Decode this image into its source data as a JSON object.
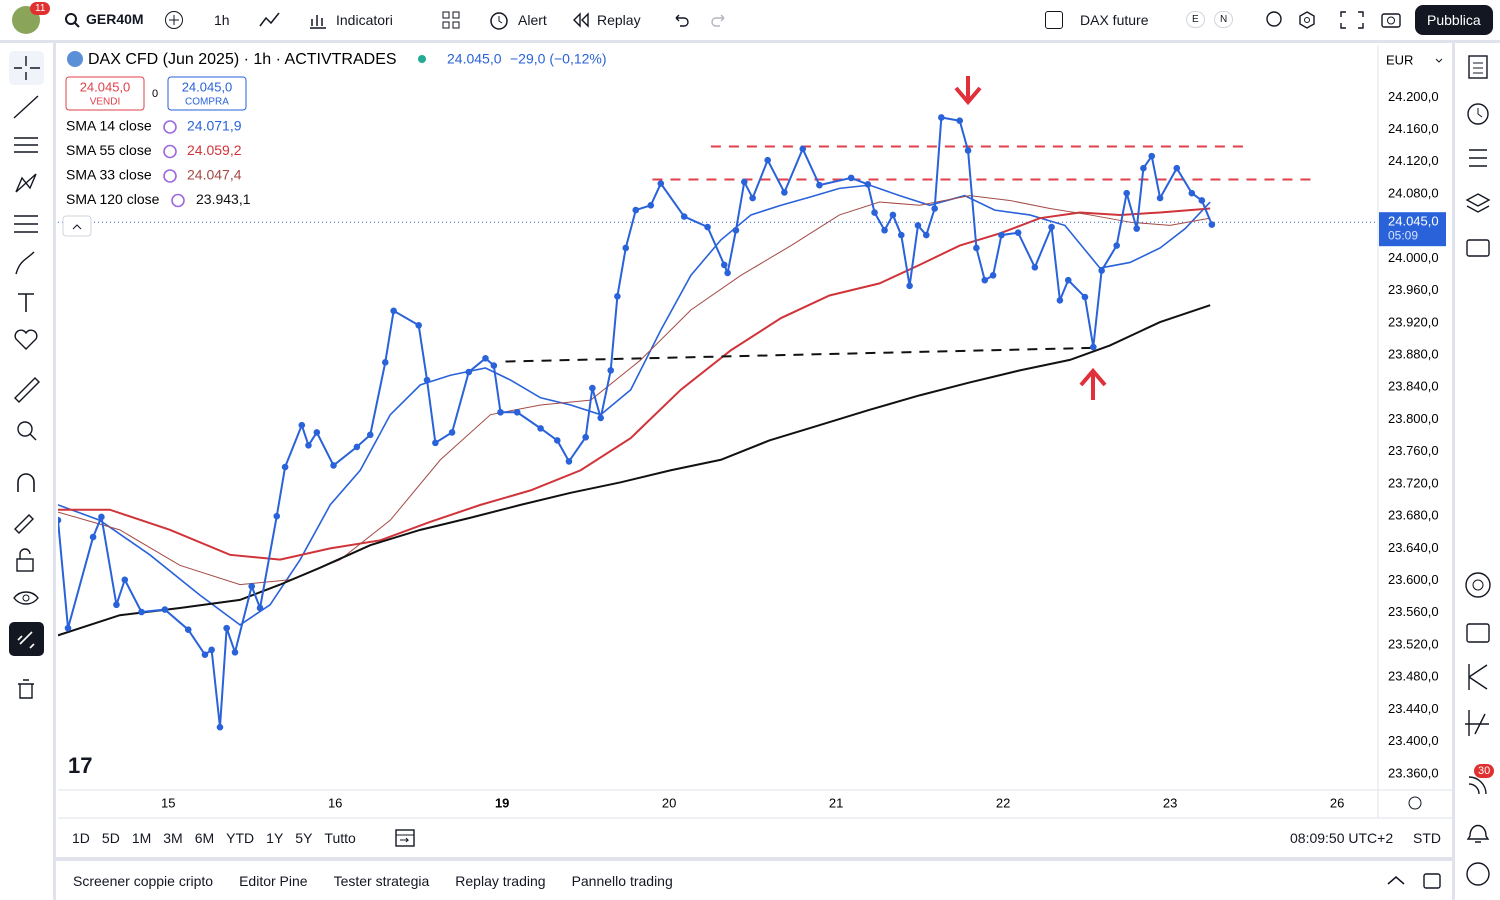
{
  "toolbar": {
    "badge": "11",
    "symbol": "GER40M",
    "interval": "1h",
    "indicators": "Indicatori",
    "alert": "Alert",
    "replay": "Replay",
    "compare": "DAX future",
    "e": "E",
    "n": "N",
    "publish": "Pubblica"
  },
  "chart_data": {
    "type": "line",
    "title": "DAX CFD (Jun 2025) · 1h · ACTIVTRADES",
    "quote": "24.045,0",
    "change": "−29,0 (−0,12%)",
    "currency": "EUR",
    "sell": {
      "price": "24.045,0",
      "label": "VENDI"
    },
    "spread": "0",
    "buy": {
      "price": "24.045,0",
      "label": "COMPRA"
    },
    "last_price": 24045,
    "last_price_label": "24.045,0",
    "countdown": "05:09",
    "logo": "17",
    "xlim": [
      -0.66,
      7.245
    ],
    "ylim": [
      23340,
      24265
    ],
    "grid": false,
    "xticks": [
      {
        "value": 0,
        "label": "15"
      },
      {
        "value": 1,
        "label": "16"
      },
      {
        "value": 2,
        "label": "19"
      },
      {
        "value": 3,
        "label": "20"
      },
      {
        "value": 4,
        "label": "21"
      },
      {
        "value": 5,
        "label": "22"
      },
      {
        "value": 6,
        "label": "23"
      },
      {
        "value": 7,
        "label": "26"
      }
    ],
    "yticks": [
      {
        "value": 23360,
        "label": "23.360,0"
      },
      {
        "value": 23400,
        "label": "23.400,0"
      },
      {
        "value": 23440,
        "label": "23.440,0"
      },
      {
        "value": 23480,
        "label": "23.480,0"
      },
      {
        "value": 23520,
        "label": "23.520,0"
      },
      {
        "value": 23560,
        "label": "23.560,0"
      },
      {
        "value": 23600,
        "label": "23.600,0"
      },
      {
        "value": 23640,
        "label": "23.640,0"
      },
      {
        "value": 23680,
        "label": "23.680,0"
      },
      {
        "value": 23720,
        "label": "23.720,0"
      },
      {
        "value": 23760,
        "label": "23.760,0"
      },
      {
        "value": 23800,
        "label": "23.800,0"
      },
      {
        "value": 23840,
        "label": "23.840,0"
      },
      {
        "value": 23880,
        "label": "23.880,0"
      },
      {
        "value": 23920,
        "label": "23.920,0"
      },
      {
        "value": 23960,
        "label": "23.960,0"
      },
      {
        "value": 24000,
        "label": "24.000,0"
      },
      {
        "value": 24040,
        "label": "24.040,0"
      },
      {
        "value": 24080,
        "label": "24.080,0"
      },
      {
        "value": 24120,
        "label": "24.120,0"
      },
      {
        "value": 24160,
        "label": "24.160,0"
      },
      {
        "value": 24200,
        "label": "24.200,0"
      }
    ],
    "price": {
      "color": "#2962d9",
      "markers": true,
      "x": [
        -0.66,
        -0.6,
        -0.45,
        -0.4,
        -0.31,
        -0.26,
        -0.16,
        -0.02,
        0.12,
        0.22,
        0.26,
        0.31,
        0.35,
        0.4,
        0.5,
        0.55,
        0.65,
        0.7,
        0.8,
        0.84,
        0.89,
        0.99,
        1.13,
        1.21,
        1.3,
        1.35,
        1.5,
        1.55,
        1.6,
        1.7,
        1.8,
        1.9,
        1.95,
        1.99,
        2.09,
        2.23,
        2.33,
        2.4,
        2.5,
        2.54,
        2.59,
        2.65,
        2.69,
        2.74,
        2.8,
        2.89,
        2.95,
        3.09,
        3.23,
        3.33,
        3.35,
        3.4,
        3.45,
        3.5,
        3.59,
        3.69,
        3.8,
        3.9,
        4.09,
        4.19,
        4.23,
        4.29,
        4.34,
        4.39,
        4.44,
        4.49,
        4.54,
        4.59,
        4.63,
        4.74,
        4.79,
        4.84,
        4.89,
        4.94,
        4.99,
        5.09,
        5.19,
        5.29,
        5.34,
        5.39,
        5.49,
        5.54,
        5.59,
        5.68,
        5.74,
        5.8,
        5.84,
        5.89,
        5.94,
        6.04,
        6.13,
        6.19,
        6.25
      ],
      "values": [
        23675,
        23541,
        23654,
        23679,
        23570,
        23601,
        23561,
        23564,
        23539,
        23508,
        23514,
        23418,
        23541,
        23511,
        23593,
        23566,
        23680,
        23741,
        23793,
        23768,
        23784,
        23743,
        23766,
        23781,
        23871,
        23935,
        23917,
        23849,
        23771,
        23784,
        23859,
        23876,
        23867,
        23809,
        23809,
        23789,
        23774,
        23748,
        23778,
        23839,
        23802,
        23861,
        23953,
        24013,
        24060,
        24066,
        24093,
        24052,
        24039,
        23992,
        23982,
        24035,
        24095,
        24075,
        24122,
        24082,
        24136,
        24091,
        24100,
        24092,
        24057,
        24035,
        24054,
        24029,
        23966,
        24041,
        24029,
        24062,
        24175,
        24171,
        24134,
        24013,
        23973,
        23979,
        24029,
        24032,
        23989,
        24039,
        23948,
        23973,
        23952,
        23890,
        23985,
        24016,
        24081,
        24037,
        24112,
        24127,
        24075,
        24112,
        24081,
        24072,
        24042
      ]
    },
    "series": [
      {
        "name": "SMA 14 close",
        "legend_value": "24.071,9",
        "color": "#2962d9",
        "width": 1.6,
        "x": [
          -0.66,
          -0.41,
          -0.11,
          0.19,
          0.43,
          0.61,
          0.79,
          0.97,
          1.15,
          1.33,
          1.51,
          1.69,
          1.9,
          2.05,
          2.23,
          2.41,
          2.59,
          2.77,
          2.95,
          3.13,
          3.31,
          3.49,
          3.67,
          3.84,
          4.02,
          4.2,
          4.38,
          4.56,
          4.77,
          4.95,
          5.16,
          5.37,
          5.58,
          5.76,
          5.94,
          6.09,
          6.24
        ],
        "values": [
          23694,
          23675,
          23632,
          23582,
          23545,
          23570,
          23626,
          23694,
          23737,
          23806,
          23843,
          23855,
          23864,
          23849,
          23827,
          23818,
          23806,
          23837,
          23911,
          23979,
          24023,
          24054,
          24066,
          24076,
          24087,
          24091,
          24078,
          24066,
          24078,
          24060,
          24054,
          24041,
          23988,
          23995,
          24013,
          24037,
          24070
        ]
      },
      {
        "name": "SMA 55 close",
        "legend_value": "24.059,2",
        "color": "#d0343a",
        "width": 2,
        "x": [
          -0.66,
          -0.35,
          0.01,
          0.37,
          0.67,
          0.97,
          1.27,
          1.57,
          1.87,
          2.17,
          2.47,
          2.77,
          3.07,
          3.37,
          3.67,
          3.96,
          4.26,
          4.5,
          4.74,
          4.98,
          5.22,
          5.46,
          5.7,
          5.94,
          6.24
        ],
        "values": [
          23688,
          23688,
          23663,
          23632,
          23626,
          23640,
          23650,
          23673,
          23694,
          23712,
          23737,
          23777,
          23837,
          23886,
          23926,
          23954,
          23969,
          23992,
          24016,
          24031,
          24050,
          24057,
          24054,
          24057,
          24062
        ]
      },
      {
        "name": "SMA 33 close",
        "legend_value": "24.047,4",
        "color": "#a34a44",
        "width": 1,
        "x": [
          -0.66,
          -0.29,
          0.07,
          0.43,
          0.73,
          1.03,
          1.33,
          1.63,
          1.93,
          2.23,
          2.53,
          2.83,
          3.13,
          3.43,
          3.73,
          4.02,
          4.26,
          4.5,
          4.8,
          5.04,
          5.28,
          5.52,
          5.76,
          6.0,
          6.24
        ],
        "values": [
          23685,
          23663,
          23619,
          23595,
          23601,
          23626,
          23675,
          23750,
          23806,
          23818,
          23824,
          23874,
          23936,
          23979,
          24016,
          24054,
          24070,
          24066,
          24078,
          24072,
          24062,
          24054,
          24045,
          24041,
          24050
        ]
      },
      {
        "name": "SMA 120 close",
        "legend_value": "23.943,1",
        "color": "#111111",
        "width": 2,
        "x": [
          -0.66,
          -0.29,
          0.07,
          0.43,
          0.67,
          0.91,
          1.21,
          1.51,
          1.81,
          2.11,
          2.41,
          2.71,
          3.01,
          3.31,
          3.6,
          3.9,
          4.2,
          4.5,
          4.8,
          5.1,
          5.4,
          5.64,
          5.94,
          6.24
        ],
        "values": [
          23532,
          23557,
          23566,
          23576,
          23595,
          23616,
          23644,
          23663,
          23678,
          23694,
          23709,
          23722,
          23737,
          23750,
          23774,
          23793,
          23812,
          23830,
          23846,
          23861,
          23874,
          23892,
          23921,
          23942
        ]
      }
    ],
    "drawings": [
      {
        "x": [
          3.25,
          6.48
        ],
        "y": [
          24139,
          24139
        ],
        "color": "#e0404a"
      },
      {
        "x": [
          2.9,
          6.87
        ],
        "y": [
          24098,
          24098
        ],
        "color": "#e0404a"
      },
      {
        "x": [
          2.02,
          5.55
        ],
        "y": [
          23872,
          23889
        ],
        "color": "#111111"
      }
    ]
  },
  "footer": {
    "ranges": [
      "1D",
      "5D",
      "1M",
      "3M",
      "6M",
      "YTD",
      "1Y",
      "5Y",
      "Tutto"
    ],
    "clock": "08:09:50 UTC+2",
    "session": "STD",
    "tabs": [
      "Screener coppie cripto",
      "Editor Pine",
      "Tester strategia",
      "Replay trading",
      "Pannello trading"
    ],
    "badge": "30"
  }
}
